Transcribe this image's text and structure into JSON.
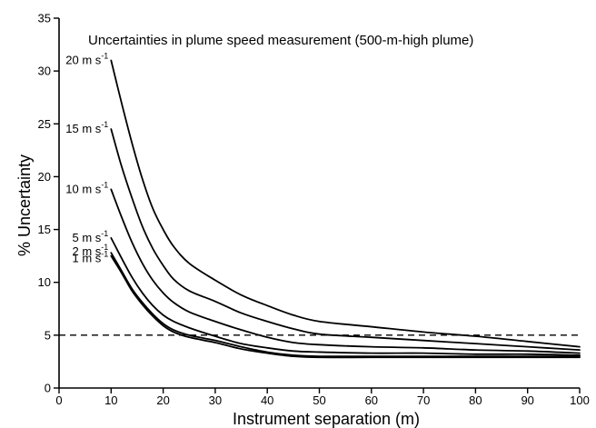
{
  "chart_data": {
    "type": "line",
    "title": "Uncertainties in plume speed measurement (500-m-high plume)",
    "xlabel": "Instrument separation (m)",
    "ylabel": "% Uncertainty",
    "xlim": [
      0,
      100
    ],
    "ylim": [
      0,
      35
    ],
    "x_ticks": [
      "0",
      "10",
      "20",
      "30",
      "40",
      "50",
      "60",
      "70",
      "80",
      "90",
      "100"
    ],
    "y_ticks": [
      "0",
      "5",
      "10",
      "15",
      "20",
      "25",
      "30",
      "35"
    ],
    "grid": false,
    "reference_line": {
      "y": 5,
      "style": "dashed"
    },
    "series": [
      {
        "name": "20 m s-1",
        "label_main": "20 m s",
        "label_sup": "-1",
        "x": [
          10,
          12,
          14,
          16,
          18,
          20,
          22,
          25,
          30,
          35,
          40,
          45,
          50,
          60,
          70,
          80,
          90,
          100
        ],
        "y": [
          31,
          27,
          23.2,
          19.8,
          17,
          15,
          13.4,
          11.8,
          10.2,
          8.8,
          7.8,
          6.9,
          6.3,
          5.8,
          5.3,
          4.9,
          4.4,
          3.9
        ]
      },
      {
        "name": "15 m s-1",
        "label_main": "15 m s",
        "label_sup": "-1",
        "x": [
          10,
          12,
          14,
          16,
          18,
          20,
          22,
          25,
          30,
          35,
          40,
          45,
          50,
          60,
          70,
          80,
          90,
          100
        ],
        "y": [
          24.5,
          21,
          18,
          15.3,
          13.2,
          11.6,
          10.3,
          9.2,
          8.2,
          7.1,
          6.3,
          5.6,
          5.1,
          4.8,
          4.5,
          4.2,
          3.9,
          3.6
        ]
      },
      {
        "name": "10 m s-1",
        "label_main": "10 m s",
        "label_sup": "-1",
        "x": [
          10,
          12,
          14,
          16,
          18,
          20,
          22,
          25,
          30,
          35,
          40,
          45,
          50,
          60,
          70,
          80,
          90,
          100
        ],
        "y": [
          18.8,
          16.2,
          13.8,
          11.8,
          10.2,
          9,
          8.1,
          7.2,
          6.3,
          5.5,
          4.8,
          4.3,
          4.1,
          3.9,
          3.8,
          3.6,
          3.5,
          3.3
        ]
      },
      {
        "name": "5 m s-1",
        "label_main": "5 m s",
        "label_sup": "-1",
        "x": [
          10,
          12,
          14,
          16,
          18,
          20,
          22,
          25,
          30,
          35,
          40,
          45,
          50,
          60,
          70,
          80,
          90,
          100
        ],
        "y": [
          14.2,
          12.3,
          10.5,
          9,
          7.8,
          6.9,
          6.3,
          5.7,
          4.9,
          4.2,
          3.8,
          3.5,
          3.4,
          3.3,
          3.3,
          3.2,
          3.2,
          3.1
        ]
      },
      {
        "name": "2 m s-1",
        "label_main": "2 m s",
        "label_sup": "-1",
        "x": [
          10,
          12,
          14,
          16,
          18,
          20,
          22,
          25,
          30,
          35,
          40,
          45,
          50,
          60,
          70,
          80,
          90,
          100
        ],
        "y": [
          12.8,
          11.1,
          9.4,
          8.1,
          7,
          6.1,
          5.5,
          5,
          4.5,
          3.9,
          3.4,
          3.1,
          3,
          3,
          3,
          3,
          3,
          3
        ]
      },
      {
        "name": "1 m s-1",
        "label_main": "1 m s",
        "label_sup": "-1",
        "x": [
          10,
          12,
          14,
          16,
          18,
          20,
          22,
          25,
          30,
          35,
          40,
          45,
          50,
          60,
          70,
          80,
          90,
          100
        ],
        "y": [
          12.5,
          10.9,
          9.2,
          7.9,
          6.8,
          5.9,
          5.3,
          4.8,
          4.3,
          3.7,
          3.3,
          3,
          2.9,
          2.9,
          2.9,
          2.9,
          2.9,
          2.9
        ]
      }
    ]
  }
}
